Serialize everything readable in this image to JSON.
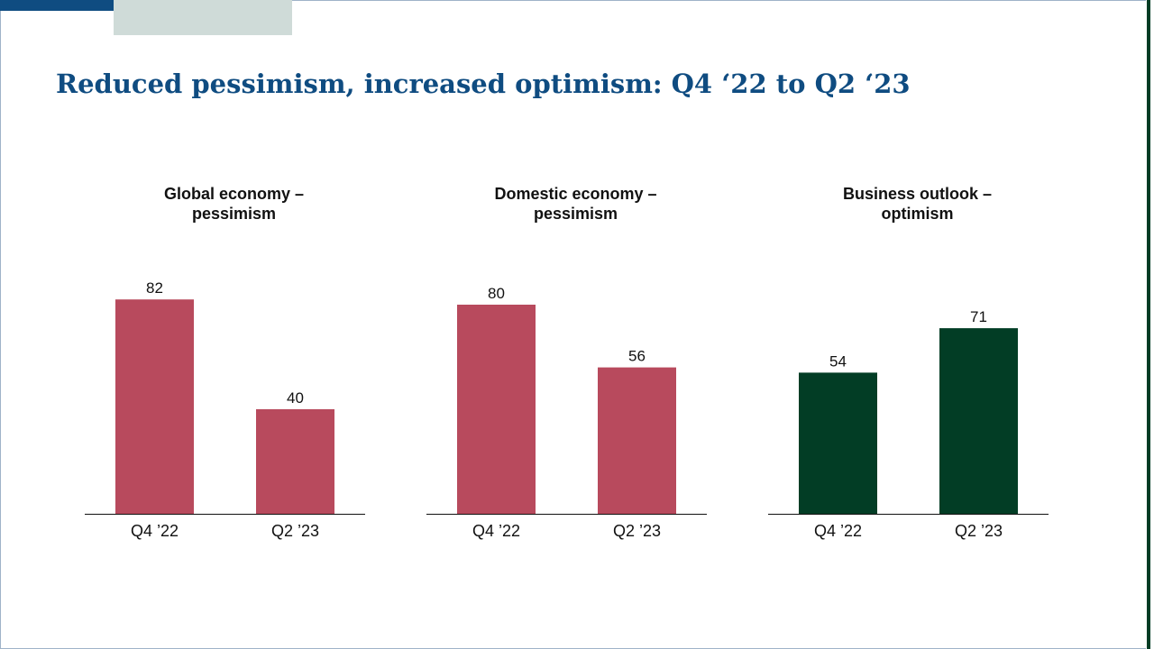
{
  "slide": {
    "title": "Reduced pessimism, increased optimism:  Q4 ‘22 to Q2 ‘23"
  },
  "colors": {
    "pessimism": "#b84a5d",
    "optimism": "#023d25",
    "title": "#0f4c81"
  },
  "chart_data": [
    {
      "type": "bar",
      "title_lines": [
        "Global economy –",
        "pessimism"
      ],
      "categories": [
        "Q4 ’22",
        "Q2 ’23"
      ],
      "values": [
        82,
        40
      ],
      "color": "#b84a5d",
      "ylim": [
        0,
        100
      ],
      "grid": false,
      "legend": "none"
    },
    {
      "type": "bar",
      "title_lines": [
        "Domestic economy –",
        "pessimism"
      ],
      "categories": [
        "Q4 ’22",
        "Q2 ’23"
      ],
      "values": [
        80,
        56
      ],
      "color": "#b84a5d",
      "ylim": [
        0,
        100
      ],
      "grid": false,
      "legend": "none"
    },
    {
      "type": "bar",
      "title_lines": [
        "Business outlook –",
        "optimism"
      ],
      "categories": [
        "Q4 ’22",
        "Q2 ’23"
      ],
      "values": [
        54,
        71
      ],
      "color": "#023d25",
      "ylim": [
        0,
        100
      ],
      "grid": false,
      "legend": "none"
    }
  ]
}
